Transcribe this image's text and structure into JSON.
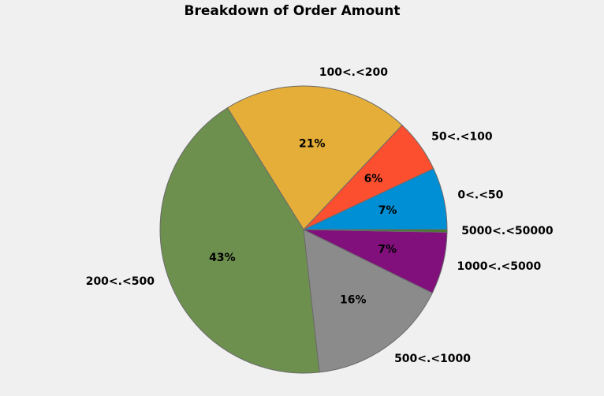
{
  "chart_data": {
    "type": "pie",
    "title": "Breakdown of Order Amount",
    "categories": [
      "0<.<50",
      "50<.<100",
      "100<.<200",
      "200<.<500",
      "500<.<1000",
      "1000<.<5000",
      "5000<.<50000"
    ],
    "values": [
      7.0,
      6.0,
      21.0,
      43.0,
      16.0,
      7.0,
      0.3
    ],
    "pct_labels": [
      "7%",
      "6%",
      "21%",
      "43%",
      "16%",
      "7%",
      ""
    ],
    "colors": [
      "#008fd5",
      "#fc4f30",
      "#e5ae38",
      "#6d904f",
      "#8b8b8b",
      "#810f7c",
      "#467821"
    ],
    "start_angle_deg": 0,
    "direction": "counterclockwise"
  }
}
